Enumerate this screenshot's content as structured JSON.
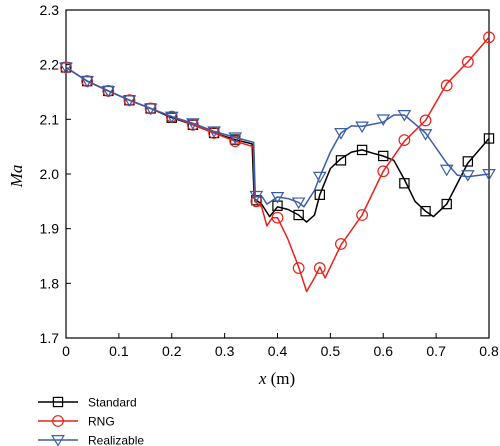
{
  "chart_data": {
    "type": "line",
    "xlabel_var": "x",
    "xlabel_unit": " (m)",
    "ylabel": "Ma",
    "xlim": [
      0,
      0.8
    ],
    "ylim": [
      1.7,
      2.3
    ],
    "xticks": [
      "0",
      "0.1",
      "0.2",
      "0.3",
      "0.4",
      "0.5",
      "0.6",
      "0.7",
      "0.8"
    ],
    "yticks": [
      "1.7",
      "1.8",
      "1.9",
      "2.0",
      "2.1",
      "2.2",
      "2.3"
    ],
    "grid": false,
    "legend_position": "bottom-left",
    "series": [
      {
        "name": "Standard",
        "color": "#000000",
        "marker": "square",
        "curve": [
          [
            0,
            2.195
          ],
          [
            0.04,
            2.17
          ],
          [
            0.08,
            2.152
          ],
          [
            0.12,
            2.135
          ],
          [
            0.16,
            2.12
          ],
          [
            0.2,
            2.103
          ],
          [
            0.24,
            2.09
          ],
          [
            0.28,
            2.075
          ],
          [
            0.32,
            2.063
          ],
          [
            0.352,
            2.055
          ],
          [
            0.356,
            1.955
          ],
          [
            0.37,
            1.945
          ],
          [
            0.385,
            1.922
          ],
          [
            0.4,
            1.94
          ],
          [
            0.42,
            1.935
          ],
          [
            0.44,
            1.925
          ],
          [
            0.455,
            1.912
          ],
          [
            0.47,
            1.925
          ],
          [
            0.48,
            1.962
          ],
          [
            0.5,
            2.01
          ],
          [
            0.52,
            2.028
          ],
          [
            0.54,
            2.04
          ],
          [
            0.56,
            2.044
          ],
          [
            0.58,
            2.038
          ],
          [
            0.6,
            2.033
          ],
          [
            0.62,
            2.025
          ],
          [
            0.64,
            1.99
          ],
          [
            0.66,
            1.95
          ],
          [
            0.68,
            1.932
          ],
          [
            0.695,
            1.922
          ],
          [
            0.72,
            1.945
          ],
          [
            0.76,
            2.02
          ],
          [
            0.8,
            2.065
          ]
        ],
        "points": [
          [
            0,
            2.195
          ],
          [
            0.04,
            2.17
          ],
          [
            0.08,
            2.152
          ],
          [
            0.12,
            2.135
          ],
          [
            0.16,
            2.12
          ],
          [
            0.2,
            2.103
          ],
          [
            0.24,
            2.09
          ],
          [
            0.28,
            2.075
          ],
          [
            0.32,
            2.063
          ],
          [
            0.36,
            1.952
          ],
          [
            0.4,
            1.942
          ],
          [
            0.44,
            1.925
          ],
          [
            0.48,
            1.962
          ],
          [
            0.52,
            2.025
          ],
          [
            0.56,
            2.044
          ],
          [
            0.6,
            2.033
          ],
          [
            0.64,
            1.983
          ],
          [
            0.68,
            1.932
          ],
          [
            0.72,
            1.945
          ],
          [
            0.76,
            2.023
          ],
          [
            0.8,
            2.065
          ]
        ]
      },
      {
        "name": "RNG",
        "color": "#e8211a",
        "marker": "circle",
        "curve": [
          [
            0,
            2.195
          ],
          [
            0.04,
            2.17
          ],
          [
            0.08,
            2.152
          ],
          [
            0.12,
            2.135
          ],
          [
            0.16,
            2.12
          ],
          [
            0.2,
            2.105
          ],
          [
            0.24,
            2.09
          ],
          [
            0.28,
            2.075
          ],
          [
            0.32,
            2.06
          ],
          [
            0.354,
            2.05
          ],
          [
            0.357,
            1.95
          ],
          [
            0.37,
            1.94
          ],
          [
            0.38,
            1.905
          ],
          [
            0.39,
            1.92
          ],
          [
            0.4,
            1.92
          ],
          [
            0.42,
            1.88
          ],
          [
            0.44,
            1.83
          ],
          [
            0.455,
            1.785
          ],
          [
            0.47,
            1.81
          ],
          [
            0.48,
            1.83
          ],
          [
            0.49,
            1.81
          ],
          [
            0.5,
            1.83
          ],
          [
            0.52,
            1.87
          ],
          [
            0.56,
            1.925
          ],
          [
            0.6,
            2.005
          ],
          [
            0.64,
            2.06
          ],
          [
            0.68,
            2.098
          ],
          [
            0.72,
            2.165
          ],
          [
            0.76,
            2.205
          ],
          [
            0.8,
            2.25
          ]
        ],
        "points": [
          [
            0,
            2.195
          ],
          [
            0.04,
            2.17
          ],
          [
            0.08,
            2.152
          ],
          [
            0.12,
            2.135
          ],
          [
            0.16,
            2.12
          ],
          [
            0.2,
            2.105
          ],
          [
            0.24,
            2.09
          ],
          [
            0.28,
            2.075
          ],
          [
            0.32,
            2.06
          ],
          [
            0.36,
            1.95
          ],
          [
            0.4,
            1.92
          ],
          [
            0.44,
            1.828
          ],
          [
            0.48,
            1.828
          ],
          [
            0.52,
            1.872
          ],
          [
            0.56,
            1.925
          ],
          [
            0.6,
            2.005
          ],
          [
            0.64,
            2.062
          ],
          [
            0.68,
            2.098
          ],
          [
            0.72,
            2.162
          ],
          [
            0.76,
            2.205
          ],
          [
            0.8,
            2.25
          ]
        ]
      },
      {
        "name": "Realizable",
        "color": "#3a5da8",
        "marker": "triangle-down",
        "curve": [
          [
            0,
            2.195
          ],
          [
            0.04,
            2.17
          ],
          [
            0.08,
            2.152
          ],
          [
            0.12,
            2.135
          ],
          [
            0.16,
            2.12
          ],
          [
            0.2,
            2.105
          ],
          [
            0.24,
            2.093
          ],
          [
            0.28,
            2.078
          ],
          [
            0.32,
            2.067
          ],
          [
            0.355,
            2.058
          ],
          [
            0.358,
            1.958
          ],
          [
            0.37,
            1.96
          ],
          [
            0.38,
            1.945
          ],
          [
            0.4,
            1.958
          ],
          [
            0.42,
            1.955
          ],
          [
            0.44,
            1.948
          ],
          [
            0.45,
            1.94
          ],
          [
            0.47,
            1.97
          ],
          [
            0.48,
            1.995
          ],
          [
            0.5,
            2.04
          ],
          [
            0.52,
            2.075
          ],
          [
            0.54,
            2.088
          ],
          [
            0.56,
            2.087
          ],
          [
            0.6,
            2.095
          ],
          [
            0.62,
            2.108
          ],
          [
            0.64,
            2.108
          ],
          [
            0.68,
            2.075
          ],
          [
            0.72,
            2.02
          ],
          [
            0.74,
            1.998
          ],
          [
            0.76,
            1.995
          ],
          [
            0.8,
            2.0
          ]
        ],
        "points": [
          [
            0,
            2.195
          ],
          [
            0.04,
            2.17
          ],
          [
            0.08,
            2.152
          ],
          [
            0.12,
            2.135
          ],
          [
            0.16,
            2.12
          ],
          [
            0.2,
            2.105
          ],
          [
            0.24,
            2.093
          ],
          [
            0.28,
            2.078
          ],
          [
            0.32,
            2.067
          ],
          [
            0.36,
            1.96
          ],
          [
            0.4,
            1.958
          ],
          [
            0.44,
            1.948
          ],
          [
            0.48,
            1.995
          ],
          [
            0.52,
            2.075
          ],
          [
            0.56,
            2.087
          ],
          [
            0.6,
            2.1
          ],
          [
            0.64,
            2.108
          ],
          [
            0.68,
            2.073
          ],
          [
            0.72,
            2.008
          ],
          [
            0.76,
            1.998
          ],
          [
            0.8,
            2.0
          ]
        ]
      }
    ]
  }
}
